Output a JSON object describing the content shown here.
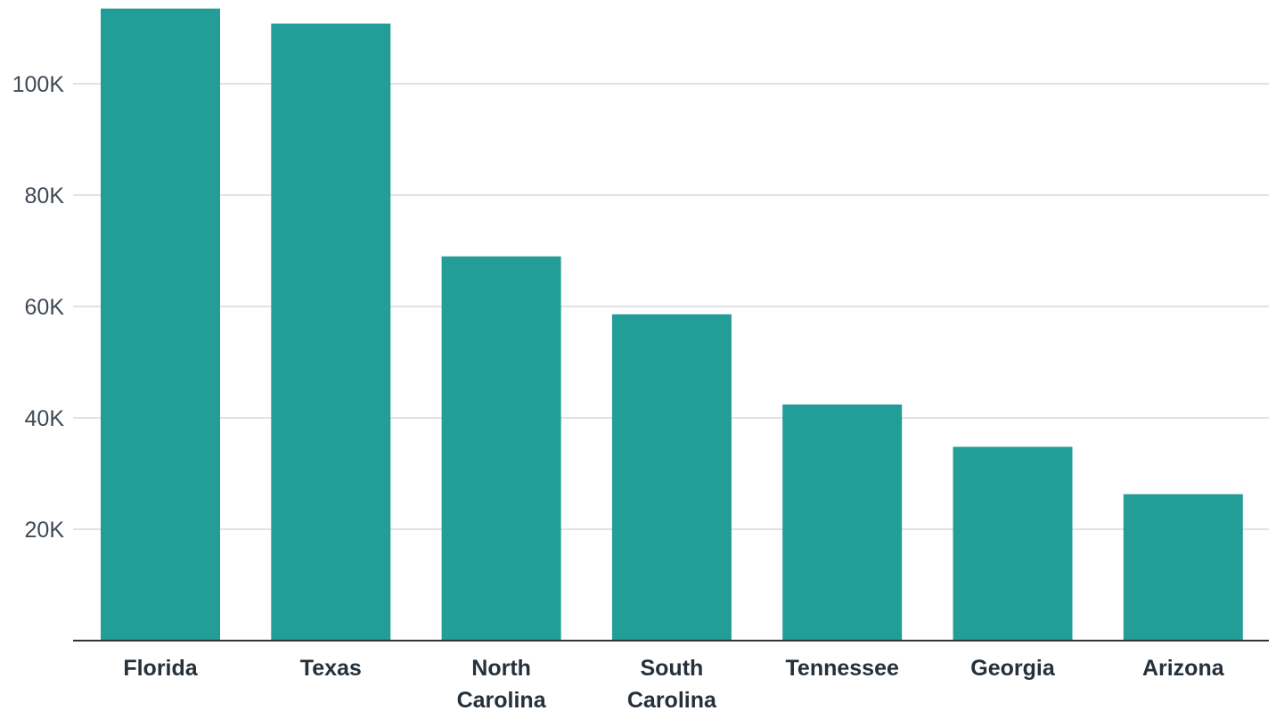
{
  "chart_data": {
    "type": "bar",
    "categories": [
      "Florida",
      "Texas",
      "North Carolina",
      "South Carolina",
      "Tennessee",
      "Georgia",
      "Arizona"
    ],
    "values": [
      113500,
      110800,
      69000,
      58600,
      42400,
      34800,
      26300
    ],
    "title": "",
    "xlabel": "",
    "ylabel": "",
    "ylim": [
      0,
      115000
    ],
    "yticks": [
      20000,
      40000,
      60000,
      80000,
      100000
    ],
    "ytick_labels": [
      "20K",
      "40K",
      "60K",
      "80K",
      "100K"
    ],
    "xtick_labels": [
      [
        "Florida"
      ],
      [
        "Texas"
      ],
      [
        "North",
        "Carolina"
      ],
      [
        "South",
        "Carolina"
      ],
      [
        "Tennessee"
      ],
      [
        "Georgia"
      ],
      [
        "Arizona"
      ]
    ],
    "bar_color": "#239d97",
    "grid": true,
    "legend": "none"
  }
}
